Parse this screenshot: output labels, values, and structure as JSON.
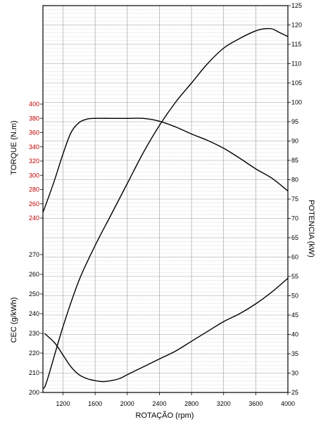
{
  "chart_data": {
    "type": "line",
    "title": "",
    "xlabel": "ROTAÇÃO (rpm)",
    "x_ticks": [
      1200,
      1600,
      2000,
      2400,
      2800,
      3200,
      3600,
      4000
    ],
    "xlim": [
      950,
      4000
    ],
    "torque_axis": {
      "label": "TORQUE (N.m)",
      "ticks": [
        240,
        260,
        280,
        300,
        320,
        340,
        360,
        380,
        400
      ],
      "color": "#c00000"
    },
    "cec_axis": {
      "label": "CEC (g/kWh)",
      "ticks": [
        200,
        210,
        220,
        230,
        240,
        250,
        260,
        270
      ]
    },
    "potencia_axis": {
      "label": "POTENCIA (kW)",
      "ticks": [
        25,
        30,
        35,
        40,
        45,
        50,
        55,
        60,
        65,
        70,
        75,
        80,
        85,
        90,
        95,
        100,
        105,
        110,
        115,
        120,
        125
      ]
    },
    "series": [
      {
        "axis": "torque",
        "x": [
          950,
          1000,
          1100,
          1200,
          1300,
          1400,
          1500,
          1600,
          1800,
          2000,
          2200,
          2400,
          2600,
          2800,
          3000,
          3200,
          3400,
          3600,
          3800,
          4000
        ],
        "values": [
          248,
          263,
          295,
          330,
          360,
          374,
          379,
          380,
          380,
          380,
          380,
          376,
          368,
          358,
          349,
          338,
          324,
          309,
          296,
          278
        ]
      },
      {
        "axis": "potencia",
        "x": [
          950,
          1000,
          1200,
          1400,
          1600,
          1800,
          2000,
          2200,
          2400,
          2600,
          2800,
          3000,
          3200,
          3400,
          3600,
          3700,
          3800,
          3900,
          4000
        ],
        "values": [
          26,
          28,
          42,
          54,
          63,
          71,
          79,
          87,
          94,
          100,
          105,
          110,
          114,
          116.5,
          118.5,
          119,
          119,
          118,
          117
        ]
      },
      {
        "axis": "cec",
        "x": [
          970,
          1100,
          1200,
          1300,
          1400,
          1500,
          1600,
          1700,
          1800,
          1900,
          2000,
          2200,
          2400,
          2600,
          2800,
          3000,
          3200,
          3400,
          3600,
          3800,
          4000
        ],
        "values": [
          230,
          225,
          219,
          213,
          209,
          207,
          206,
          205.5,
          206,
          207,
          209,
          213,
          217,
          221,
          226,
          231,
          236,
          240,
          245,
          251,
          258
        ]
      }
    ],
    "grid": true
  }
}
